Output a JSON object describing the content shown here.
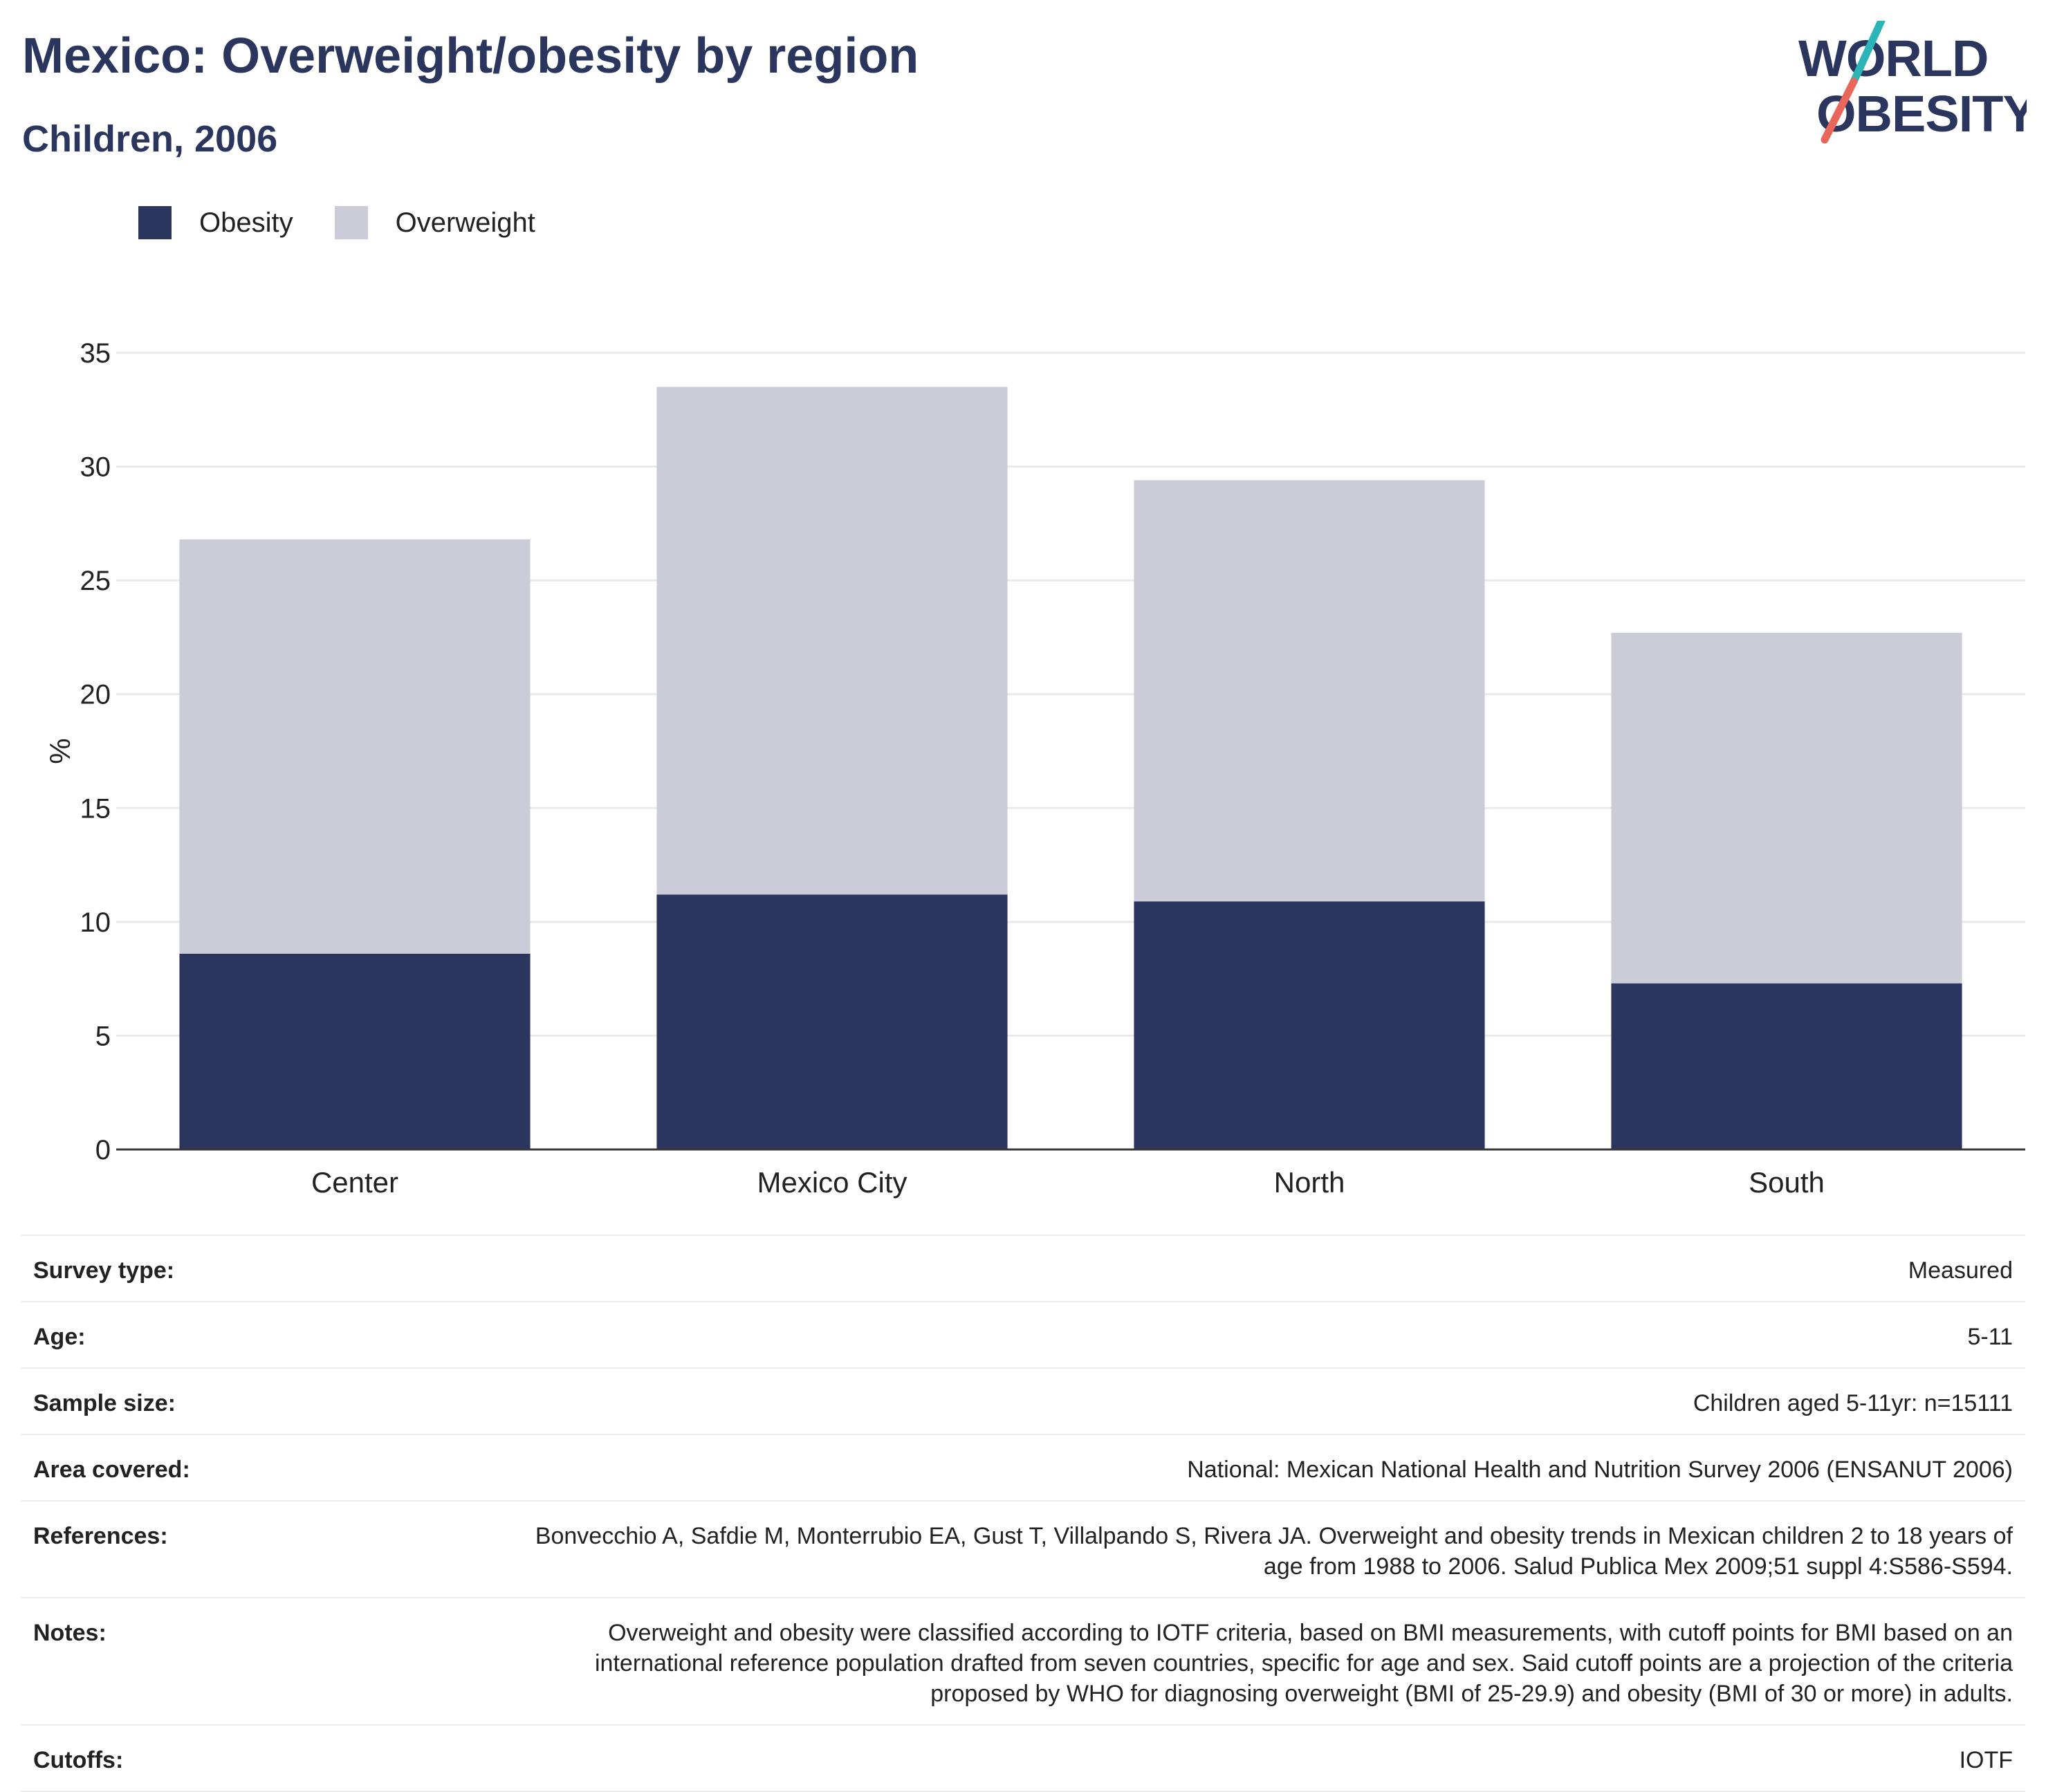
{
  "header": {
    "title": "Mexico: Overweight/obesity by region",
    "subtitle": "Children, 2006"
  },
  "logo": {
    "line1": "WORLD",
    "line2": "OBESITY",
    "colors": {
      "text": "#2b365f",
      "slash_top": "#2bb5b8",
      "slash_bottom": "#e8665a"
    }
  },
  "legend": [
    {
      "label": "Obesity",
      "color": "#2b365f"
    },
    {
      "label": "Overweight",
      "color": "#cbccd8"
    }
  ],
  "chart_data": {
    "type": "bar",
    "stacked": true,
    "categories": [
      "Center",
      "Mexico City",
      "North",
      "South"
    ],
    "series": [
      {
        "name": "Obesity",
        "color": "#2b365f",
        "values": [
          8.6,
          11.2,
          10.9,
          7.3
        ]
      },
      {
        "name": "Overweight",
        "color": "#cbccd8",
        "values": [
          18.2,
          22.3,
          18.5,
          15.4
        ]
      }
    ],
    "ylabel": "%",
    "ylim": [
      0,
      35
    ],
    "yticks": [
      0,
      5,
      10,
      15,
      20,
      25,
      30,
      35
    ],
    "grid": true,
    "legend_position": "top-left"
  },
  "metadata": [
    {
      "key": "Survey type:",
      "value": "Measured"
    },
    {
      "key": "Age:",
      "value": "5-11"
    },
    {
      "key": "Sample size:",
      "value": "Children aged 5-11yr: n=15111"
    },
    {
      "key": "Area covered:",
      "value": "National: Mexican National Health and Nutrition Survey 2006 (ENSANUT 2006)"
    },
    {
      "key": "References:",
      "value": "Bonvecchio A, Safdie M, Monterrubio EA, Gust T, Villalpando S, Rivera JA. Overweight and obesity trends in Mexican children 2 to 18 years of age from 1988 to 2006. Salud Publica Mex 2009;51 suppl 4:S586-S594."
    },
    {
      "key": "Notes:",
      "value": "Overweight and obesity were classified according to IOTF criteria, based on BMI measurements, with cutoff points for BMI based on an international reference population drafted from seven countries, specific for age and sex. Said cutoff points are a projection of the criteria proposed by WHO for diagnosing overweight (BMI of 25-29.9) and obesity (BMI of 30 or more) in adults."
    },
    {
      "key": "Cutoffs:",
      "value": "IOTF"
    }
  ]
}
